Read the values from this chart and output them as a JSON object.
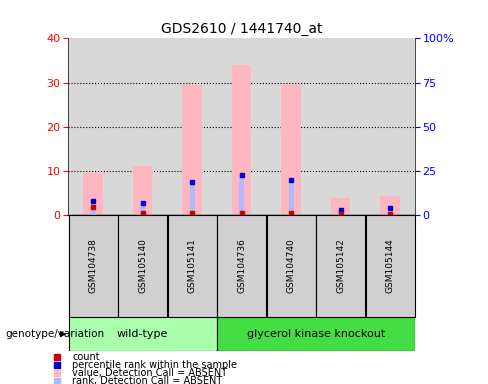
{
  "title": "GDS2610 / 1441740_at",
  "samples": [
    "GSM104738",
    "GSM105140",
    "GSM105141",
    "GSM104736",
    "GSM104740",
    "GSM105142",
    "GSM105144"
  ],
  "pink_bars": [
    9.5,
    11.0,
    29.5,
    34.0,
    29.5,
    3.8,
    4.2
  ],
  "blue_bar_y": [
    3.2,
    2.7,
    7.5,
    9.0,
    8.0,
    1.2,
    1.5
  ],
  "red_sq_y": [
    1.8,
    0.4,
    0.4,
    0.4,
    0.4,
    0.3,
    0.3
  ],
  "blue_sq_y": [
    3.2,
    2.7,
    7.5,
    9.0,
    8.0,
    1.2,
    1.5
  ],
  "ylim_left": [
    0,
    40
  ],
  "ylim_right": [
    0,
    100
  ],
  "yticks_left": [
    0,
    10,
    20,
    30,
    40
  ],
  "yticks_right": [
    0,
    25,
    50,
    75,
    100
  ],
  "ytick_labels_right": [
    "0",
    "25",
    "50",
    "75",
    "100%"
  ],
  "bar_color_pink": "#ffb6c1",
  "bar_color_lightblue": "#b0b8ff",
  "dot_color_blue": "#0000cc",
  "dot_color_red": "#cc0000",
  "wt_samples": [
    0,
    1,
    2
  ],
  "gk_samples": [
    3,
    4,
    5,
    6
  ],
  "wt_color": "#aaffaa",
  "gk_color": "#44dd44",
  "wt_label": "wild-type",
  "gk_label": "glycerol kinase knockout",
  "genotype_label": "genotype/variation",
  "legend_colors": [
    "#cc0000",
    "#0000cc",
    "#ffb6c1",
    "#b0b8ff"
  ],
  "legend_labels": [
    "count",
    "percentile rank within the sample",
    "value, Detection Call = ABSENT",
    "rank, Detection Call = ABSENT"
  ],
  "plot_bg": "#d8d8d8",
  "fig_bg": "#ffffff",
  "title_fontsize": 10,
  "tick_fontsize": 8,
  "label_fontsize": 8,
  "legend_fontsize": 8
}
